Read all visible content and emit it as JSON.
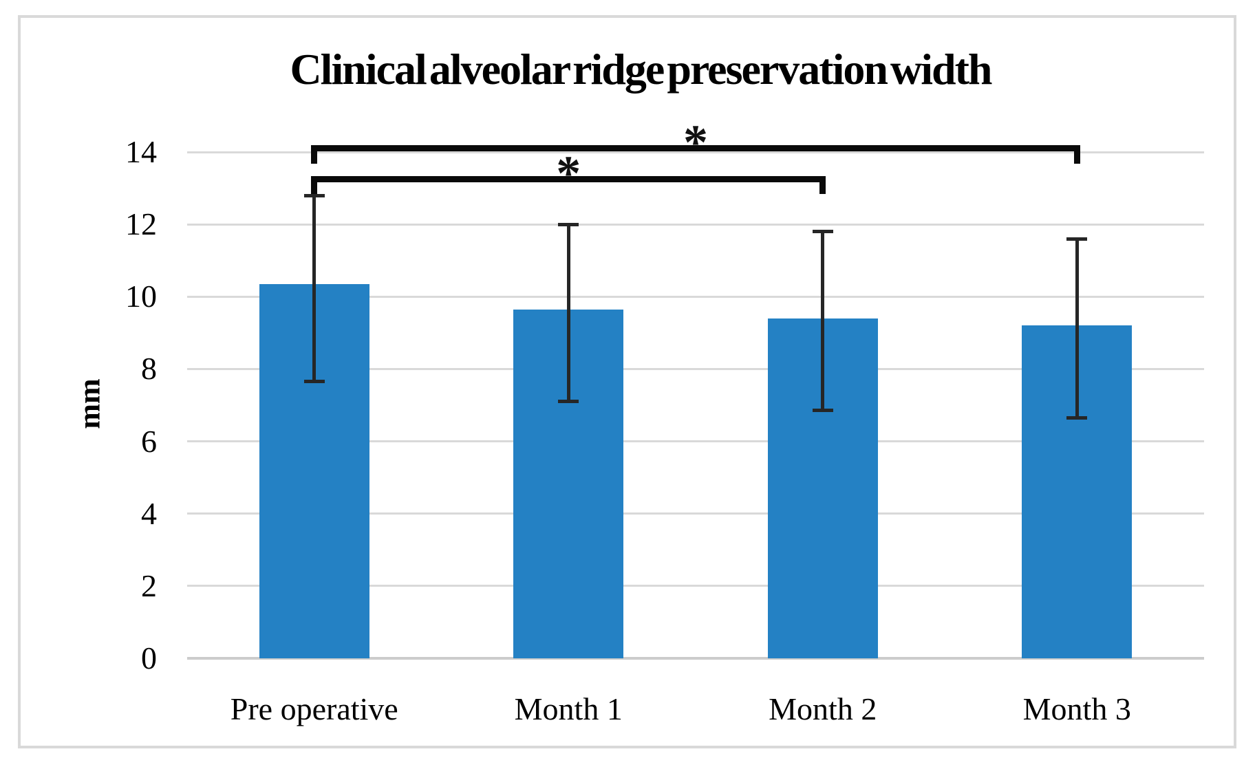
{
  "figure": {
    "title": "Clinical alveolar ridge preservation width",
    "y_axis_title": "mm"
  },
  "colors": {
    "bar": "#2481C4",
    "gridline": "#D9D9D9",
    "baseline": "#CCCCCC",
    "frame_border": "#D9D9D9",
    "error_bar": "#262626",
    "bracket": "#0A0A0A",
    "text": "#000000"
  },
  "chart_data": {
    "type": "bar",
    "title": "Clinical alveolar ridge preservation width",
    "xlabel": "",
    "ylabel": "mm",
    "categories": [
      "Pre operative",
      "Month 1",
      "Month 2",
      "Month 3"
    ],
    "values": [
      10.35,
      9.65,
      9.4,
      9.2
    ],
    "error_bar_top": [
      12.8,
      12.0,
      11.8,
      11.6
    ],
    "error_bar_bottom": [
      7.65,
      7.1,
      6.85,
      6.65
    ],
    "ylim": [
      0,
      14
    ],
    "yticks": [
      0,
      2,
      4,
      6,
      8,
      10,
      12,
      14
    ],
    "grid": "horizontal-only",
    "legend": "none",
    "significance_brackets": [
      {
        "from": "Pre operative",
        "to": "Month 3",
        "label": "*",
        "y_value": 14.1
      },
      {
        "from": "Pre operative",
        "to": "Month 2",
        "label": "*",
        "y_value": 13.25
      }
    ]
  }
}
